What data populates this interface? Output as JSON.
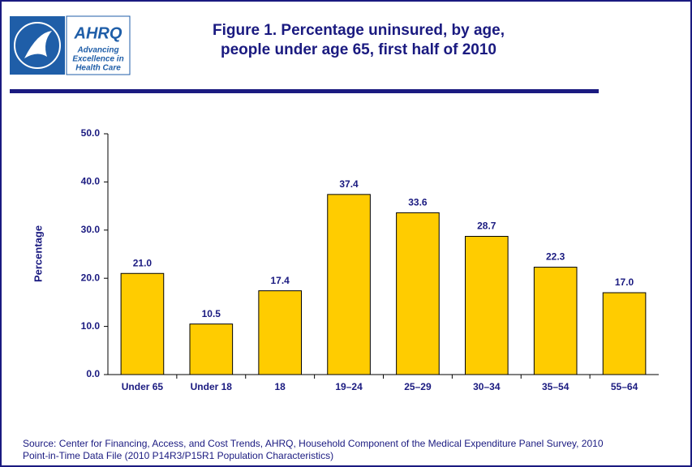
{
  "logo": {
    "brand": "AHRQ",
    "tagline_lines": [
      "Advancing",
      "Excellence in",
      "Health Care"
    ]
  },
  "chart_data": {
    "type": "bar",
    "title_lines": [
      "Figure 1. Percentage uninsured, by age,",
      "people under age 65, first half of 2010"
    ],
    "y_label": "Percentage",
    "categories": [
      "Under 65",
      "Under 18",
      "18",
      "19–24",
      "25–29",
      "30–34",
      "35–54",
      "55–64"
    ],
    "values": [
      21.0,
      10.5,
      17.4,
      37.4,
      33.6,
      28.7,
      22.3,
      17.0
    ],
    "value_labels": [
      "21.0",
      "10.5",
      "17.4",
      "37.4",
      "33.6",
      "28.7",
      "22.3",
      "17.0"
    ],
    "color": "#ffcc00",
    "ylim": [
      0,
      50
    ],
    "yticks": [
      {
        "value": 0,
        "label": "0.0"
      },
      {
        "value": 10,
        "label": "10.0"
      },
      {
        "value": 20,
        "label": "20.0"
      },
      {
        "value": 30,
        "label": "30.0"
      },
      {
        "value": 40,
        "label": "40.0"
      },
      {
        "value": 50,
        "label": "50.0"
      }
    ],
    "grid": false,
    "source_lines": [
      "Source: Center for Financing, Access, and Cost Trends, AHRQ, Household Component of the Medical Expenditure Panel Survey, 2010",
      "Point-in-Time Data File (2010 P14R3/P15R1 Population Characteristics)"
    ]
  }
}
